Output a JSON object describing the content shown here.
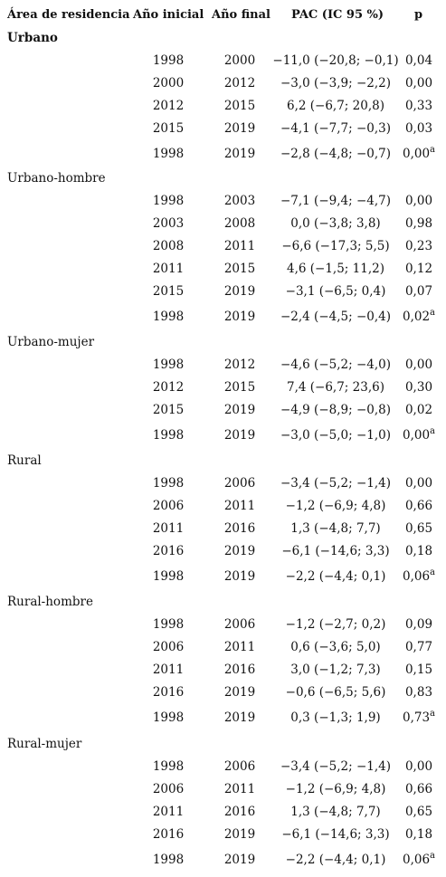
{
  "headers": {
    "area": "Área de residencia",
    "start": "Año inicial",
    "end": "Año final",
    "pac": "PAC (IC 95 %)",
    "p": "p"
  },
  "sections": [
    {
      "label": "Urbano",
      "bold": true,
      "rows": [
        {
          "start": "1998",
          "end": "2000",
          "pac": "−11,0 (−20,8; −0,1)",
          "p": "0,04",
          "sup": ""
        },
        {
          "start": "2000",
          "end": "2012",
          "pac": "−3,0 (−3,9; −2,2)",
          "p": "0,00",
          "sup": ""
        },
        {
          "start": "2012",
          "end": "2015",
          "pac": "6,2 (−6,7; 20,8)",
          "p": "0,33",
          "sup": ""
        },
        {
          "start": "2015",
          "end": "2019",
          "pac": "−4,1 (−7,7; −0,3)",
          "p": "0,03",
          "sup": ""
        },
        {
          "start": "1998",
          "end": "2019",
          "pac": "−2,8 (−4,8; −0,7)",
          "p": "0,00",
          "sup": "a"
        }
      ]
    },
    {
      "label": "Urbano-hombre",
      "bold": false,
      "rows": [
        {
          "start": "1998",
          "end": "2003",
          "pac": "−7,1 (−9,4; −4,7)",
          "p": "0,00",
          "sup": ""
        },
        {
          "start": "2003",
          "end": "2008",
          "pac": "0,0 (−3,8; 3,8)",
          "p": "0,98",
          "sup": ""
        },
        {
          "start": "2008",
          "end": "2011",
          "pac": "−6,6 (−17,3; 5,5)",
          "p": "0,23",
          "sup": ""
        },
        {
          "start": "2011",
          "end": "2015",
          "pac": "4,6 (−1,5; 11,2)",
          "p": "0,12",
          "sup": ""
        },
        {
          "start": "2015",
          "end": "2019",
          "pac": "−3,1 (−6,5; 0,4)",
          "p": "0,07",
          "sup": ""
        },
        {
          "start": "1998",
          "end": "2019",
          "pac": "−2,4 (−4,5; −0,4)",
          "p": "0,02",
          "sup": "a"
        }
      ]
    },
    {
      "label": "Urbano-mujer",
      "bold": false,
      "rows": [
        {
          "start": "1998",
          "end": "2012",
          "pac": "−4,6 (−5,2; −4,0)",
          "p": "0,00",
          "sup": ""
        },
        {
          "start": "2012",
          "end": "2015",
          "pac": "7,4 (−6,7; 23,6)",
          "p": "0,30",
          "sup": ""
        },
        {
          "start": "2015",
          "end": "2019",
          "pac": "−4,9 (−8,9; −0,8)",
          "p": "0,02",
          "sup": ""
        },
        {
          "start": "1998",
          "end": "2019",
          "pac": "−3,0 (−5,0; −1,0)",
          "p": "0,00",
          "sup": "a"
        }
      ]
    },
    {
      "label": "Rural",
      "bold": false,
      "rows": [
        {
          "start": "1998",
          "end": "2006",
          "pac": "−3,4 (−5,2; −1,4)",
          "p": "0,00",
          "sup": ""
        },
        {
          "start": "2006",
          "end": "2011",
          "pac": "−1,2 (−6,9; 4,8)",
          "p": "0,66",
          "sup": ""
        },
        {
          "start": "2011",
          "end": "2016",
          "pac": "1,3 (−4,8; 7,7)",
          "p": "0,65",
          "sup": ""
        },
        {
          "start": "2016",
          "end": "2019",
          "pac": "−6,1 (−14,6; 3,3)",
          "p": "0,18",
          "sup": ""
        },
        {
          "start": "1998",
          "end": "2019",
          "pac": "−2,2 (−4,4; 0,1)",
          "p": "0,06",
          "sup": "a"
        }
      ]
    },
    {
      "label": "Rural-hombre",
      "bold": false,
      "rows": [
        {
          "start": "1998",
          "end": "2006",
          "pac": "−1,2 (−2,7; 0,2)",
          "p": "0,09",
          "sup": ""
        },
        {
          "start": "2006",
          "end": "2011",
          "pac": "0,6 (−3,6; 5,0)",
          "p": "0,77",
          "sup": ""
        },
        {
          "start": "2011",
          "end": "2016",
          "pac": "3,0 (−1,2; 7,3)",
          "p": "0,15",
          "sup": ""
        },
        {
          "start": "2016",
          "end": "2019",
          "pac": "−0,6 (−6,5; 5,6)",
          "p": "0,83",
          "sup": ""
        },
        {
          "start": "1998",
          "end": "2019",
          "pac": "0,3 (−1,3; 1,9)",
          "p": "0,73",
          "sup": "a"
        }
      ]
    },
    {
      "label": "Rural-mujer",
      "bold": false,
      "rows": [
        {
          "start": "1998",
          "end": "2006",
          "pac": "−3,4 (−5,2; −1,4)",
          "p": "0,00",
          "sup": ""
        },
        {
          "start": "2006",
          "end": "2011",
          "pac": "−1,2 (−6,9; 4,8)",
          "p": "0,66",
          "sup": ""
        },
        {
          "start": "2011",
          "end": "2016",
          "pac": "1,3 (−4,8; 7,7)",
          "p": "0,65",
          "sup": ""
        },
        {
          "start": "2016",
          "end": "2019",
          "pac": "−6,1 (−14,6; 3,3)",
          "p": "0,18",
          "sup": ""
        },
        {
          "start": "1998",
          "end": "2019",
          "pac": "−2,2 (−4,4; 0,1)",
          "p": "0,06",
          "sup": "a"
        }
      ]
    }
  ]
}
